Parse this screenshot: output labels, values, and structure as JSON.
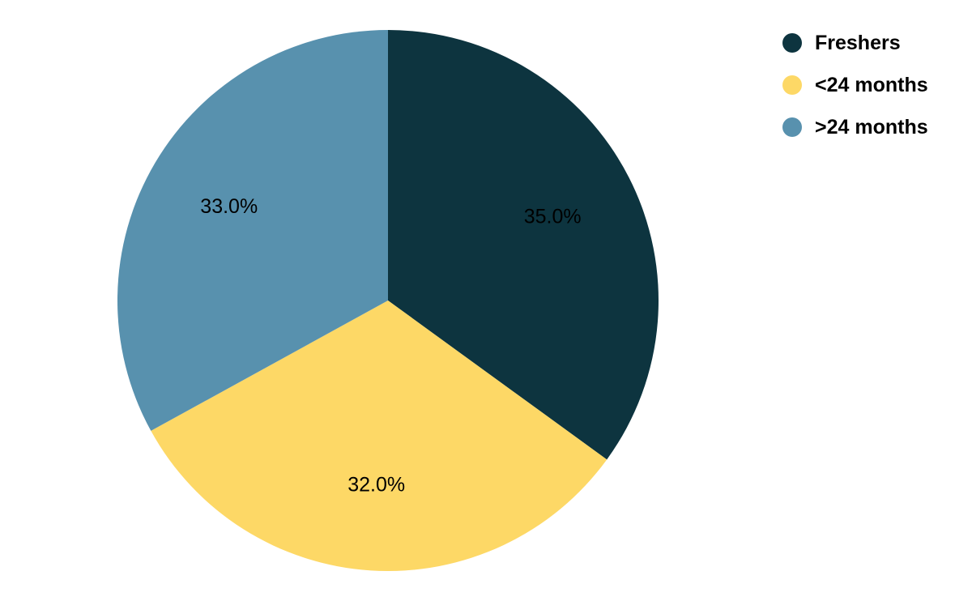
{
  "chart_data": {
    "type": "pie",
    "title": "",
    "categories": [
      "Freshers",
      "<24 months",
      ">24 months"
    ],
    "values": [
      35.0,
      32.0,
      33.0
    ],
    "data_labels": [
      "35.0%",
      "32.0%",
      "33.0%"
    ],
    "colors": [
      "#0d343f",
      "#fdd866",
      "#5891ae"
    ],
    "start_angle_deg": 0,
    "direction": "clockwise",
    "legend": {
      "position": "top-right",
      "marker": "circle"
    }
  }
}
